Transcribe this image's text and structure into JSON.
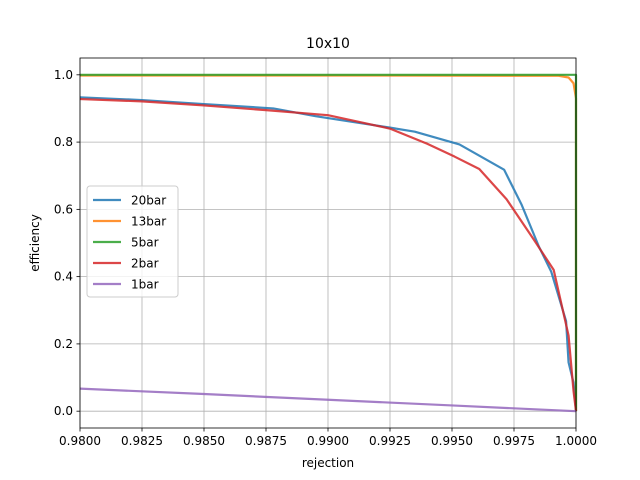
{
  "chart_data": {
    "type": "line",
    "title": "10x10",
    "xlabel": "rejection",
    "ylabel": "efficiency",
    "xlim": [
      0.98,
      1.0
    ],
    "ylim": [
      -0.05,
      1.05
    ],
    "xticks": [
      "0.9800",
      "0.9825",
      "0.9850",
      "0.9875",
      "0.9900",
      "0.9925",
      "0.9950",
      "0.9975",
      "1.0000"
    ],
    "yticks": [
      "0.0",
      "0.2",
      "0.4",
      "0.6",
      "0.8",
      "1.0"
    ],
    "grid": true,
    "legend_position": "center-left",
    "series": [
      {
        "name": "20bar",
        "color": "#1f77b4",
        "points": [
          [
            0.98,
            0.933
          ],
          [
            0.9825,
            0.925
          ],
          [
            0.985,
            0.913
          ],
          [
            0.9878,
            0.9
          ],
          [
            0.9895,
            0.877
          ],
          [
            0.991,
            0.86
          ],
          [
            0.9925,
            0.843
          ],
          [
            0.9935,
            0.831
          ],
          [
            0.9953,
            0.793
          ],
          [
            0.9971,
            0.718
          ],
          [
            0.9978,
            0.615
          ],
          [
            0.9985,
            0.49
          ],
          [
            0.999,
            0.415
          ],
          [
            0.9996,
            0.268
          ],
          [
            0.9997,
            0.145
          ],
          [
            0.9999,
            0.085
          ],
          [
            1.0,
            0.0
          ]
        ]
      },
      {
        "name": "13bar",
        "color": "#ff7f0e",
        "points": [
          [
            0.98,
            0.998
          ],
          [
            0.99,
            0.998
          ],
          [
            0.9993,
            0.997
          ],
          [
            0.9997,
            0.992
          ],
          [
            0.9999,
            0.975
          ],
          [
            1.0,
            0.93
          ],
          [
            1.0,
            0.0
          ]
        ]
      },
      {
        "name": "5bar",
        "color": "#2ca02c",
        "points": [
          [
            0.98,
            1.0
          ],
          [
            0.99,
            1.0
          ],
          [
            1.0,
            1.0
          ],
          [
            1.0,
            0.0
          ]
        ]
      },
      {
        "name": "2bar",
        "color": "#d62728",
        "points": [
          [
            0.98,
            0.928
          ],
          [
            0.9825,
            0.921
          ],
          [
            0.985,
            0.909
          ],
          [
            0.9875,
            0.895
          ],
          [
            0.99,
            0.88
          ],
          [
            0.9925,
            0.84
          ],
          [
            0.994,
            0.795
          ],
          [
            0.9951,
            0.757
          ],
          [
            0.9961,
            0.72
          ],
          [
            0.9972,
            0.63
          ],
          [
            0.9983,
            0.51
          ],
          [
            0.9991,
            0.42
          ],
          [
            0.9997,
            0.225
          ],
          [
            0.9999,
            0.06
          ],
          [
            1.0,
            0.0
          ]
        ]
      },
      {
        "name": "1bar",
        "color": "#9467bd",
        "points": [
          [
            0.98,
            0.067
          ],
          [
            0.985,
            0.051
          ],
          [
            0.99,
            0.034
          ],
          [
            0.995,
            0.017
          ],
          [
            1.0,
            0.0
          ]
        ]
      }
    ]
  }
}
